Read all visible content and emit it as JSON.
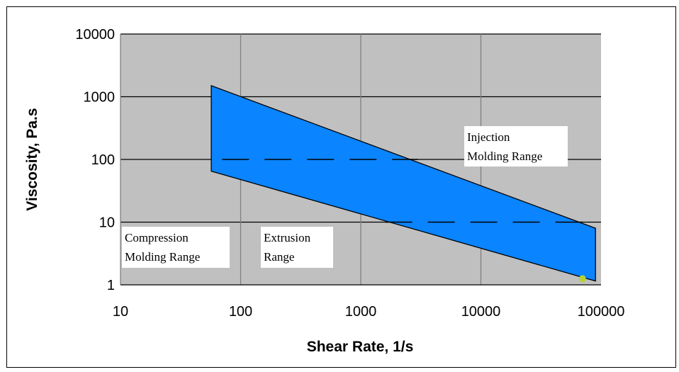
{
  "chart_data": {
    "type": "area",
    "title": "",
    "xlabel": "Shear Rate, 1/s",
    "ylabel": "Viscosity, Pa.s",
    "x_scale": "log",
    "y_scale": "log",
    "xlim": [
      10,
      100000
    ],
    "ylim": [
      1,
      10000
    ],
    "x_ticks": [
      "10",
      "100",
      "1000",
      "10000",
      "100000"
    ],
    "y_ticks": [
      "1",
      "10",
      "100",
      "1000",
      "10000"
    ],
    "grid": "major gridlines on both axes",
    "plot_background": "#c0c0c0",
    "series": [
      {
        "fill": "#0a84ff",
        "polygon": [
          {
            "x": 57,
            "y": 1500
          },
          {
            "x": 90000,
            "y": 8
          },
          {
            "x": 90000,
            "y": 1.15
          },
          {
            "x": 57,
            "y": 65
          }
        ]
      }
    ],
    "dashed_reference_lines": [
      {
        "y": 100,
        "x_from": 70,
        "x_to": 3000
      },
      {
        "y": 10,
        "x_from": 1600,
        "x_to": 80000
      }
    ],
    "marker": {
      "x": 70000,
      "y": 1.25,
      "color": "#b5d334"
    },
    "annotations": [
      {
        "lines": [
          "Injection",
          "Molding Range"
        ]
      },
      {
        "lines": [
          "Extrusion",
          "Range"
        ]
      },
      {
        "lines": [
          "Compression",
          "Molding Range"
        ]
      }
    ]
  }
}
